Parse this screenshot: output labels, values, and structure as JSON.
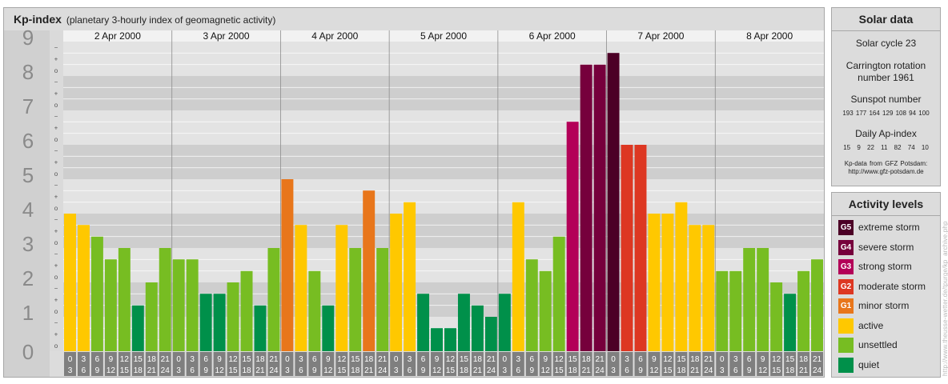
{
  "header": {
    "title": "Kp-index",
    "subtitle": "(planetary 3-hourly index of geomagnetic activity)"
  },
  "chart_data": {
    "type": "bar",
    "title": "Kp-index",
    "subtitle": "(planetary 3-hourly index of geomagnetic activity)",
    "ylim": [
      0,
      9
    ],
    "y_ticks": [
      "0",
      "1",
      "2",
      "3",
      "4",
      "5",
      "6",
      "7",
      "8",
      "9"
    ],
    "y_fine_ticks": [
      "o",
      "+",
      "−"
    ],
    "days": [
      "2 Apr 2000",
      "3 Apr 2000",
      "4 Apr 2000",
      "5 Apr 2000",
      "6 Apr 2000",
      "7 Apr 2000",
      "8 Apr 2000"
    ],
    "hour_start_labels": [
      "0",
      "3",
      "6",
      "9",
      "12",
      "15",
      "18",
      "21"
    ],
    "hour_end_labels": [
      "3",
      "6",
      "9",
      "12",
      "15",
      "18",
      "21",
      "24"
    ],
    "values": [
      [
        4.0,
        3.67,
        3.33,
        2.67,
        3.0,
        1.33,
        2.0,
        3.0
      ],
      [
        2.67,
        2.67,
        1.67,
        1.67,
        2.0,
        2.33,
        1.33,
        3.0
      ],
      [
        5.0,
        3.67,
        2.33,
        1.33,
        3.67,
        3.0,
        4.67,
        3.0
      ],
      [
        4.0,
        4.33,
        1.67,
        0.67,
        0.67,
        1.67,
        1.33,
        1.0
      ],
      [
        1.67,
        4.33,
        2.67,
        2.33,
        3.33,
        6.67,
        8.33,
        8.33
      ],
      [
        8.67,
        6.0,
        6.0,
        4.0,
        4.0,
        4.33,
        3.67,
        3.67
      ],
      [
        2.33,
        2.33,
        3.0,
        3.0,
        2.0,
        1.67,
        2.33,
        2.67
      ]
    ],
    "grid": true,
    "legend_position": "right"
  },
  "solar": {
    "title": "Solar data",
    "cycle": "Solar cycle 23",
    "carrington_line1": "Carrington rotation",
    "carrington_line2": "number 1961",
    "sunspot_label": "Sunspot number",
    "sunspot_values": "193 177 164 129 108 94 100",
    "ap_label": "Daily Ap-index",
    "ap_values": "15 9 22 11 82 74 10",
    "source_line1": "Kp-data from GFZ Potsdam:",
    "source_line2": "http://www.gfz-potsdam.de"
  },
  "activity_levels": {
    "title": "Activity levels",
    "items": [
      {
        "code": "G5",
        "label": "extreme storm",
        "color": "#4c0026"
      },
      {
        "code": "G4",
        "label": "severe storm",
        "color": "#76003c"
      },
      {
        "code": "G3",
        "label": "strong storm",
        "color": "#b30058"
      },
      {
        "code": "G2",
        "label": "moderate storm",
        "color": "#dd3722"
      },
      {
        "code": "G1",
        "label": "minor storm",
        "color": "#e8761b"
      },
      {
        "code": "",
        "label": "active",
        "color": "#ffc800"
      },
      {
        "code": "",
        "label": "unsettled",
        "color": "#77bd22"
      },
      {
        "code": "",
        "label": "quiet",
        "color": "#00904a"
      }
    ]
  },
  "watermark": "http://www.theusse-wetter.de/tpurge/kp_archive.php"
}
